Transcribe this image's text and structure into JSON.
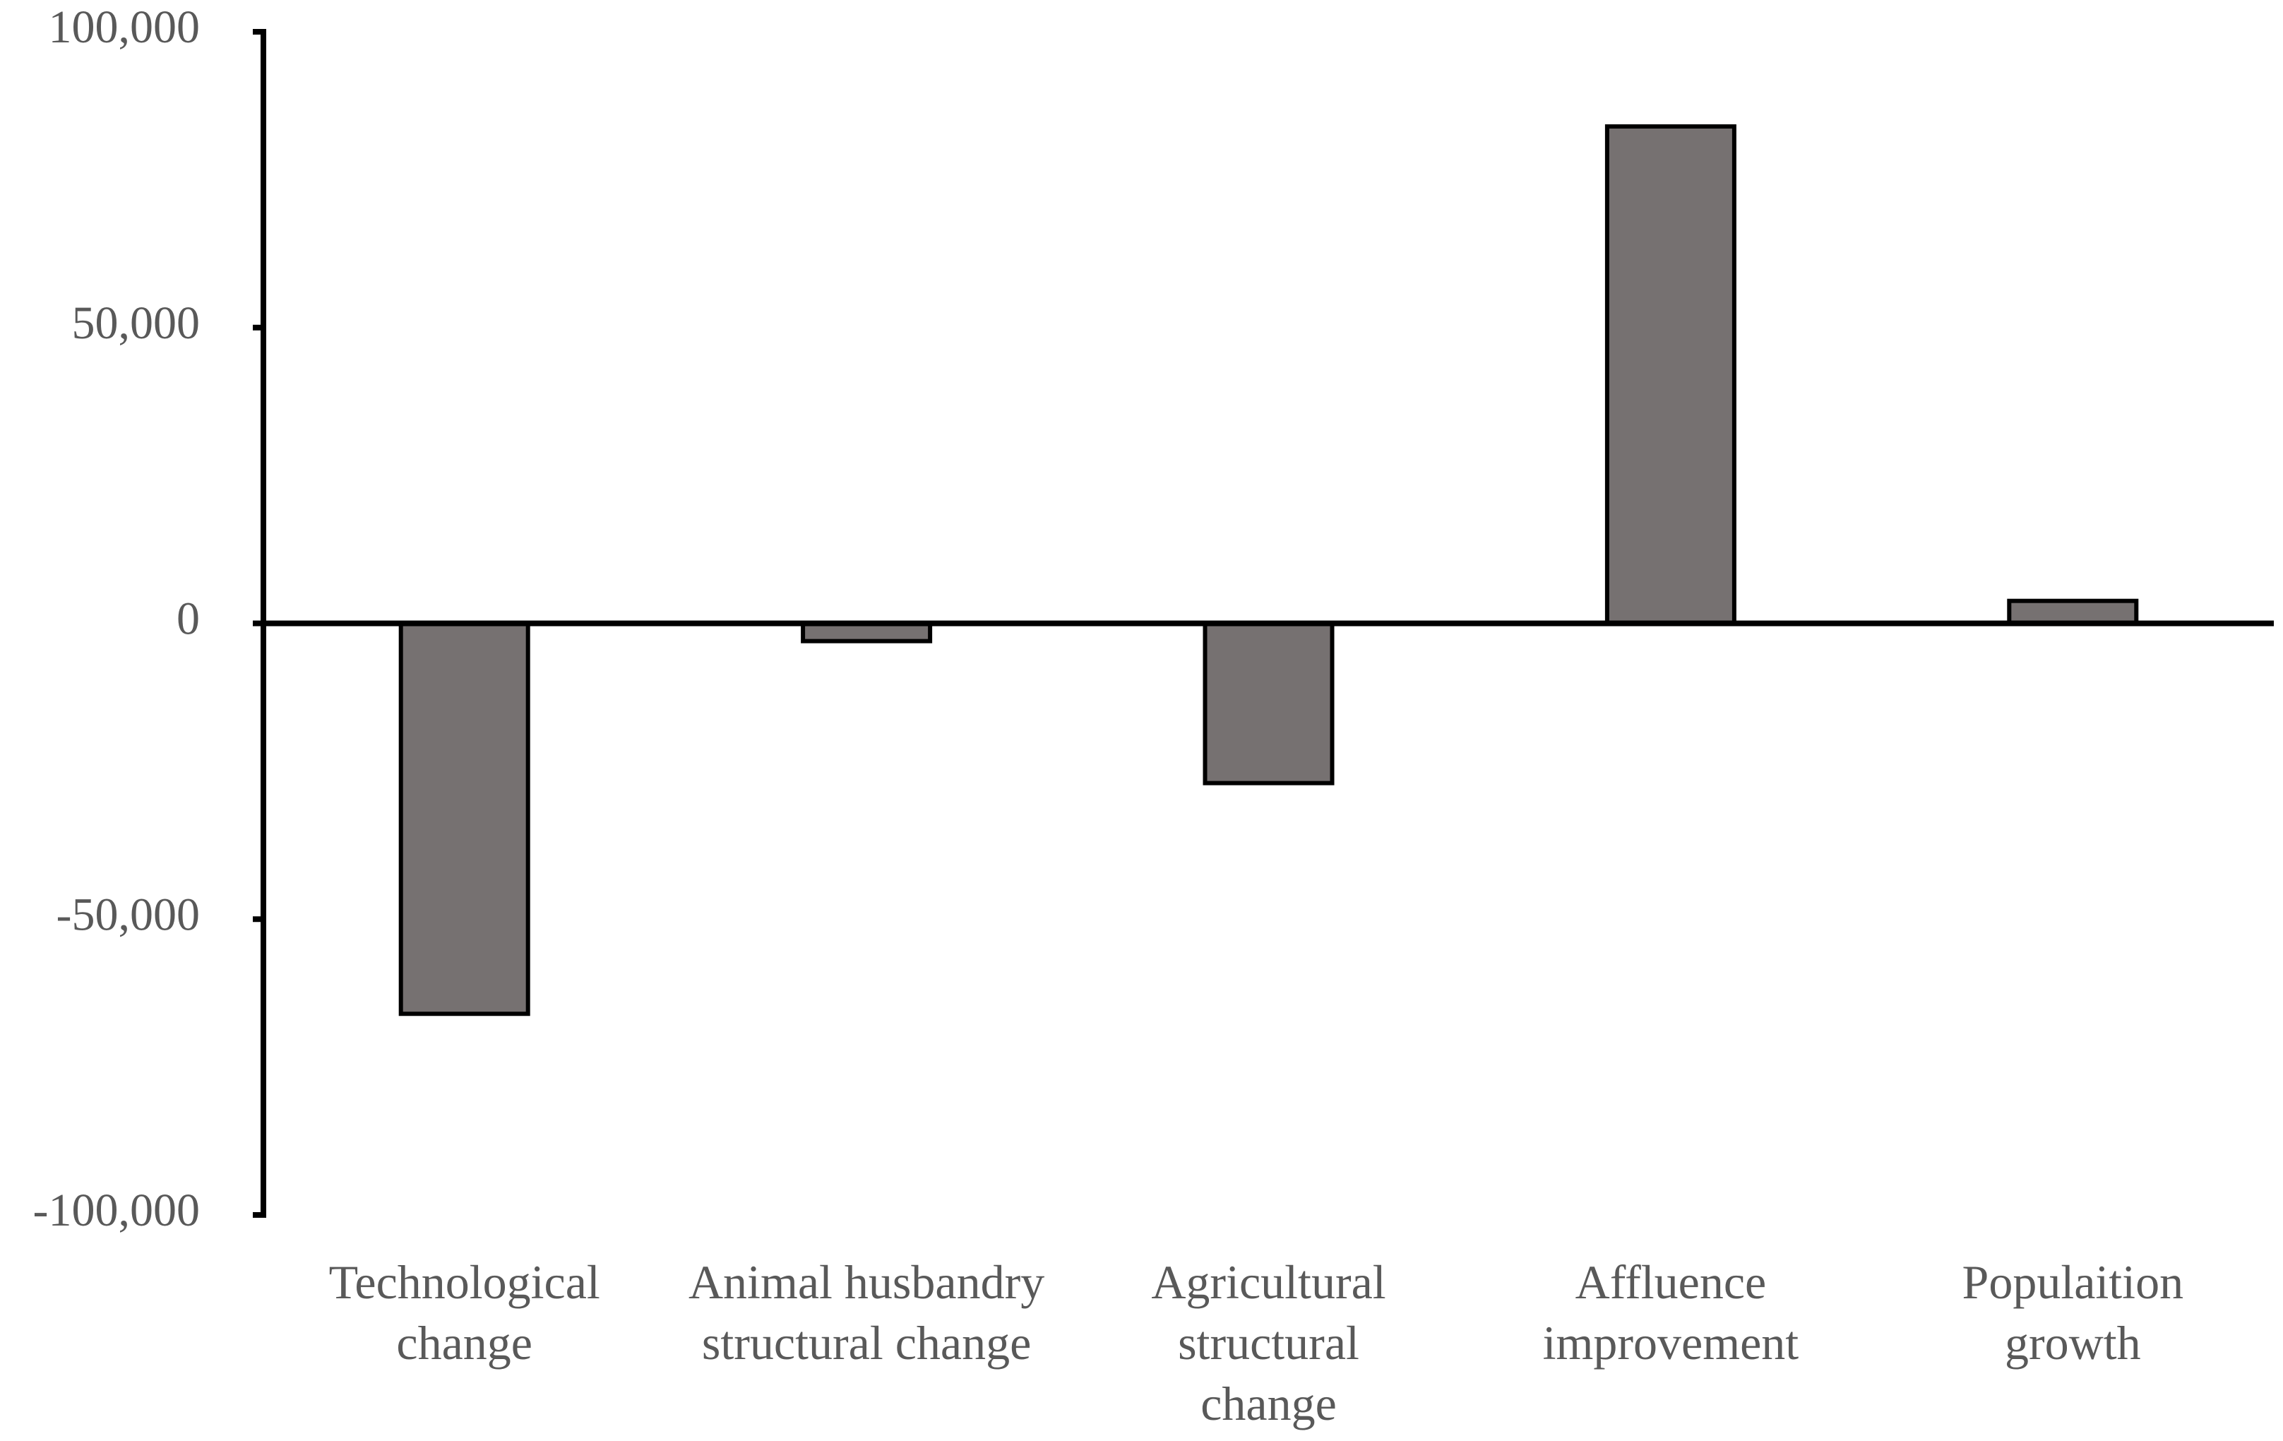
{
  "chart_data": {
    "type": "bar",
    "categories": [
      [
        "Technological",
        "change"
      ],
      [
        "Animal husbandry",
        "structural change"
      ],
      [
        "Agricultural",
        "structural",
        "change"
      ],
      [
        "Affluence",
        "improvement"
      ],
      [
        "Populaition",
        "growth"
      ]
    ],
    "values": [
      -66000,
      -3000,
      -27000,
      84000,
      3800
    ],
    "y_ticks": [
      100000,
      50000,
      0,
      -50000,
      -100000
    ],
    "y_tick_labels": [
      "100,000",
      "50,000",
      "0",
      "-50,000",
      "-100,000"
    ],
    "ylim": [
      -100000,
      100000
    ],
    "title": "",
    "xlabel": "",
    "ylabel": "",
    "grid": false,
    "legend": "none",
    "bar_color": "#767171",
    "axis_color": "#000000",
    "label_color": "#595959"
  }
}
